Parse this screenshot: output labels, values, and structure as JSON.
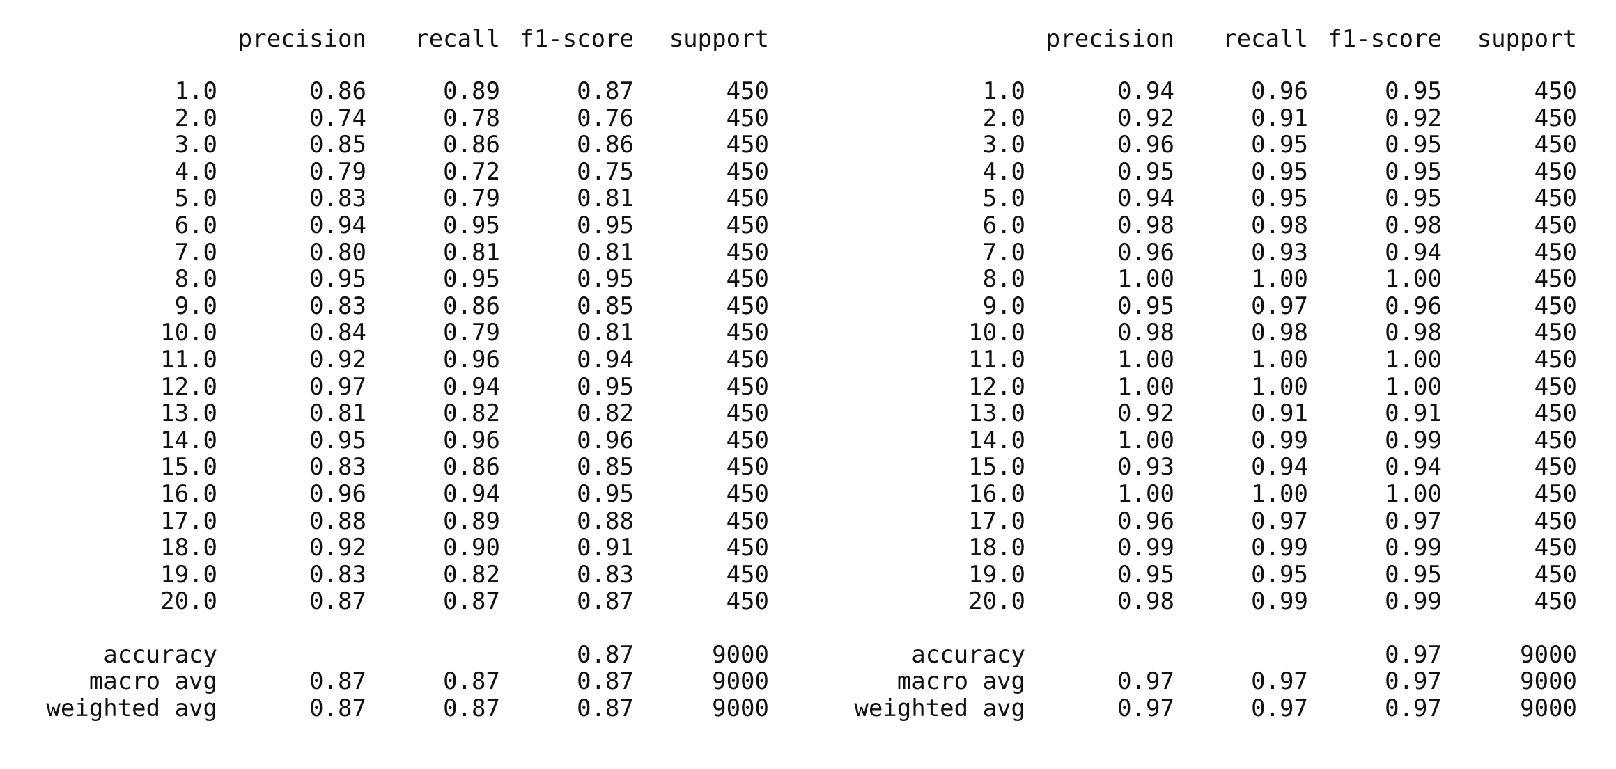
{
  "headers": {
    "precision": "precision",
    "recall": "recall",
    "f1": "f1-score",
    "support": "support"
  },
  "reports": [
    {
      "rows": [
        {
          "label": "1.0",
          "precision": "0.86",
          "recall": "0.89",
          "f1": "0.87",
          "support": "450"
        },
        {
          "label": "2.0",
          "precision": "0.74",
          "recall": "0.78",
          "f1": "0.76",
          "support": "450"
        },
        {
          "label": "3.0",
          "precision": "0.85",
          "recall": "0.86",
          "f1": "0.86",
          "support": "450"
        },
        {
          "label": "4.0",
          "precision": "0.79",
          "recall": "0.72",
          "f1": "0.75",
          "support": "450"
        },
        {
          "label": "5.0",
          "precision": "0.83",
          "recall": "0.79",
          "f1": "0.81",
          "support": "450"
        },
        {
          "label": "6.0",
          "precision": "0.94",
          "recall": "0.95",
          "f1": "0.95",
          "support": "450"
        },
        {
          "label": "7.0",
          "precision": "0.80",
          "recall": "0.81",
          "f1": "0.81",
          "support": "450"
        },
        {
          "label": "8.0",
          "precision": "0.95",
          "recall": "0.95",
          "f1": "0.95",
          "support": "450"
        },
        {
          "label": "9.0",
          "precision": "0.83",
          "recall": "0.86",
          "f1": "0.85",
          "support": "450"
        },
        {
          "label": "10.0",
          "precision": "0.84",
          "recall": "0.79",
          "f1": "0.81",
          "support": "450"
        },
        {
          "label": "11.0",
          "precision": "0.92",
          "recall": "0.96",
          "f1": "0.94",
          "support": "450"
        },
        {
          "label": "12.0",
          "precision": "0.97",
          "recall": "0.94",
          "f1": "0.95",
          "support": "450"
        },
        {
          "label": "13.0",
          "precision": "0.81",
          "recall": "0.82",
          "f1": "0.82",
          "support": "450"
        },
        {
          "label": "14.0",
          "precision": "0.95",
          "recall": "0.96",
          "f1": "0.96",
          "support": "450"
        },
        {
          "label": "15.0",
          "precision": "0.83",
          "recall": "0.86",
          "f1": "0.85",
          "support": "450"
        },
        {
          "label": "16.0",
          "precision": "0.96",
          "recall": "0.94",
          "f1": "0.95",
          "support": "450"
        },
        {
          "label": "17.0",
          "precision": "0.88",
          "recall": "0.89",
          "f1": "0.88",
          "support": "450"
        },
        {
          "label": "18.0",
          "precision": "0.92",
          "recall": "0.90",
          "f1": "0.91",
          "support": "450"
        },
        {
          "label": "19.0",
          "precision": "0.83",
          "recall": "0.82",
          "f1": "0.83",
          "support": "450"
        },
        {
          "label": "20.0",
          "precision": "0.87",
          "recall": "0.87",
          "f1": "0.87",
          "support": "450"
        }
      ],
      "summary": [
        {
          "label": "accuracy",
          "precision": "",
          "recall": "",
          "f1": "0.87",
          "support": "9000"
        },
        {
          "label": "macro avg",
          "precision": "0.87",
          "recall": "0.87",
          "f1": "0.87",
          "support": "9000"
        },
        {
          "label": "weighted avg",
          "precision": "0.87",
          "recall": "0.87",
          "f1": "0.87",
          "support": "9000"
        }
      ]
    },
    {
      "rows": [
        {
          "label": "1.0",
          "precision": "0.94",
          "recall": "0.96",
          "f1": "0.95",
          "support": "450"
        },
        {
          "label": "2.0",
          "precision": "0.92",
          "recall": "0.91",
          "f1": "0.92",
          "support": "450"
        },
        {
          "label": "3.0",
          "precision": "0.96",
          "recall": "0.95",
          "f1": "0.95",
          "support": "450"
        },
        {
          "label": "4.0",
          "precision": "0.95",
          "recall": "0.95",
          "f1": "0.95",
          "support": "450"
        },
        {
          "label": "5.0",
          "precision": "0.94",
          "recall": "0.95",
          "f1": "0.95",
          "support": "450"
        },
        {
          "label": "6.0",
          "precision": "0.98",
          "recall": "0.98",
          "f1": "0.98",
          "support": "450"
        },
        {
          "label": "7.0",
          "precision": "0.96",
          "recall": "0.93",
          "f1": "0.94",
          "support": "450"
        },
        {
          "label": "8.0",
          "precision": "1.00",
          "recall": "1.00",
          "f1": "1.00",
          "support": "450"
        },
        {
          "label": "9.0",
          "precision": "0.95",
          "recall": "0.97",
          "f1": "0.96",
          "support": "450"
        },
        {
          "label": "10.0",
          "precision": "0.98",
          "recall": "0.98",
          "f1": "0.98",
          "support": "450"
        },
        {
          "label": "11.0",
          "precision": "1.00",
          "recall": "1.00",
          "f1": "1.00",
          "support": "450"
        },
        {
          "label": "12.0",
          "precision": "1.00",
          "recall": "1.00",
          "f1": "1.00",
          "support": "450"
        },
        {
          "label": "13.0",
          "precision": "0.92",
          "recall": "0.91",
          "f1": "0.91",
          "support": "450"
        },
        {
          "label": "14.0",
          "precision": "1.00",
          "recall": "0.99",
          "f1": "0.99",
          "support": "450"
        },
        {
          "label": "15.0",
          "precision": "0.93",
          "recall": "0.94",
          "f1": "0.94",
          "support": "450"
        },
        {
          "label": "16.0",
          "precision": "1.00",
          "recall": "1.00",
          "f1": "1.00",
          "support": "450"
        },
        {
          "label": "17.0",
          "precision": "0.96",
          "recall": "0.97",
          "f1": "0.97",
          "support": "450"
        },
        {
          "label": "18.0",
          "precision": "0.99",
          "recall": "0.99",
          "f1": "0.99",
          "support": "450"
        },
        {
          "label": "19.0",
          "precision": "0.95",
          "recall": "0.95",
          "f1": "0.95",
          "support": "450"
        },
        {
          "label": "20.0",
          "precision": "0.98",
          "recall": "0.99",
          "f1": "0.99",
          "support": "450"
        }
      ],
      "summary": [
        {
          "label": "accuracy",
          "precision": "",
          "recall": "",
          "f1": "0.97",
          "support": "9000"
        },
        {
          "label": "macro avg",
          "precision": "0.97",
          "recall": "0.97",
          "f1": "0.97",
          "support": "9000"
        },
        {
          "label": "weighted avg",
          "precision": "0.97",
          "recall": "0.97",
          "f1": "0.97",
          "support": "9000"
        }
      ]
    }
  ]
}
